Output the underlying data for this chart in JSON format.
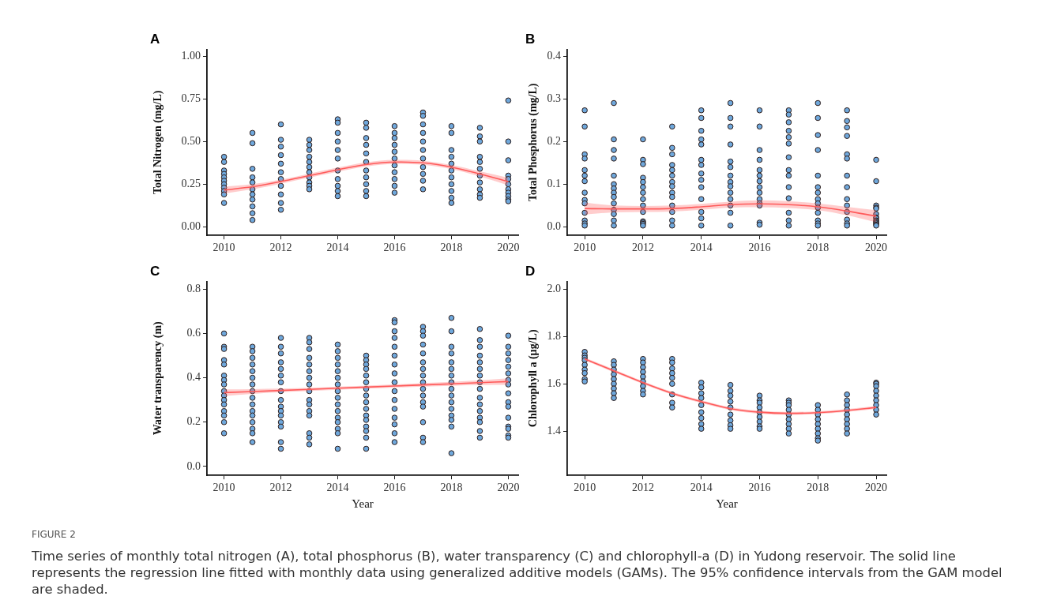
{
  "chart_data": [
    {
      "type": "scatter",
      "title": "A",
      "ylabel": "Total Nitrogen (mg/L)",
      "xlim": [
        2009.4,
        2020.35
      ],
      "xticks": [
        2010,
        2012,
        2014,
        2016,
        2018,
        2020
      ],
      "ylim": [
        -0.05,
        1.04
      ],
      "yticks": [
        {
          "value": 0,
          "label": "0.00"
        },
        {
          "value": 0.25,
          "label": "0.25"
        },
        {
          "value": 0.5,
          "label": "0.50"
        },
        {
          "value": 0.75,
          "label": "0.75"
        },
        {
          "value": 1,
          "label": "1.00"
        }
      ],
      "grid": false,
      "legend": false,
      "series": [
        {
          "type": "scatter",
          "color": "#6fa8dc",
          "marker": "circle",
          "x": [
            2010,
            2010,
            2010,
            2010,
            2010,
            2010,
            2010,
            2010,
            2010,
            2010,
            2010,
            2011,
            2011,
            2011,
            2011,
            2011,
            2011,
            2011,
            2011,
            2011,
            2011,
            2011,
            2012,
            2012,
            2012,
            2012,
            2012,
            2012,
            2012,
            2012,
            2012,
            2012,
            2012,
            2013,
            2013,
            2013,
            2013,
            2013,
            2013,
            2013,
            2013,
            2013,
            2013,
            2013,
            2014,
            2014,
            2014,
            2014,
            2014,
            2014,
            2014,
            2014,
            2014,
            2014,
            2014,
            2015,
            2015,
            2015,
            2015,
            2015,
            2015,
            2015,
            2015,
            2015,
            2015,
            2015,
            2016,
            2016,
            2016,
            2016,
            2016,
            2016,
            2016,
            2016,
            2016,
            2016,
            2016,
            2017,
            2017,
            2017,
            2017,
            2017,
            2017,
            2017,
            2017,
            2017,
            2017,
            2017,
            2018,
            2018,
            2018,
            2018,
            2018,
            2018,
            2018,
            2018,
            2018,
            2018,
            2018,
            2019,
            2019,
            2019,
            2019,
            2019,
            2019,
            2019,
            2019,
            2019,
            2019,
            2019,
            2020,
            2020,
            2020,
            2020,
            2020,
            2020,
            2020,
            2020,
            2020,
            2020,
            2020
          ],
          "values": [
            0.41,
            0.38,
            0.33,
            0.31,
            0.29,
            0.27,
            0.25,
            0.23,
            0.21,
            0.19,
            0.14,
            0.55,
            0.49,
            0.34,
            0.29,
            0.26,
            0.22,
            0.19,
            0.16,
            0.12,
            0.08,
            0.04,
            0.6,
            0.51,
            0.47,
            0.42,
            0.37,
            0.32,
            0.28,
            0.24,
            0.19,
            0.14,
            0.1,
            0.51,
            0.48,
            0.45,
            0.41,
            0.38,
            0.35,
            0.32,
            0.29,
            0.26,
            0.24,
            0.22,
            0.63,
            0.61,
            0.55,
            0.5,
            0.45,
            0.4,
            0.33,
            0.28,
            0.24,
            0.21,
            0.18,
            0.61,
            0.58,
            0.52,
            0.48,
            0.43,
            0.38,
            0.33,
            0.29,
            0.25,
            0.21,
            0.18,
            0.59,
            0.55,
            0.52,
            0.48,
            0.44,
            0.4,
            0.36,
            0.32,
            0.28,
            0.24,
            0.2,
            0.67,
            0.65,
            0.6,
            0.55,
            0.5,
            0.45,
            0.4,
            0.35,
            0.31,
            0.27,
            0.22,
            0.59,
            0.55,
            0.45,
            0.41,
            0.37,
            0.33,
            0.29,
            0.25,
            0.21,
            0.17,
            0.14,
            0.58,
            0.53,
            0.5,
            0.41,
            0.38,
            0.34,
            0.3,
            0.26,
            0.22,
            0.19,
            0.17,
            0.74,
            0.5,
            0.39,
            0.3,
            0.28,
            0.25,
            0.22,
            0.2,
            0.18,
            0.16,
            0.15
          ]
        },
        {
          "type": "line",
          "color": "#ff5a5a",
          "marker": "none",
          "x": [
            2010,
            2011,
            2012,
            2013,
            2014,
            2015,
            2016,
            2017,
            2018,
            2019,
            2020
          ],
          "values": [
            0.215,
            0.235,
            0.265,
            0.3,
            0.335,
            0.365,
            0.38,
            0.375,
            0.35,
            0.31,
            0.265
          ],
          "lower": [
            0.195,
            0.22,
            0.253,
            0.288,
            0.323,
            0.353,
            0.368,
            0.363,
            0.338,
            0.295,
            0.243
          ],
          "upper": [
            0.235,
            0.25,
            0.277,
            0.312,
            0.347,
            0.377,
            0.392,
            0.387,
            0.362,
            0.325,
            0.287
          ]
        }
      ]
    },
    {
      "type": "scatter",
      "title": "B",
      "ylabel": "Total Phosphorus (mg/L)",
      "xlim": [
        2009.4,
        2020.35
      ],
      "xticks": [
        2010,
        2012,
        2014,
        2016,
        2018,
        2020
      ],
      "ylim": [
        -0.02,
        0.416
      ],
      "yticks": [
        {
          "value": 0,
          "label": "0.0"
        },
        {
          "value": 0.1,
          "label": "0.1"
        },
        {
          "value": 0.2,
          "label": "0.2"
        },
        {
          "value": 0.3,
          "label": "0.3"
        },
        {
          "value": 0.4,
          "label": "0.4"
        }
      ],
      "grid": false,
      "legend": false,
      "series": [
        {
          "type": "scatter",
          "color": "#6fa8dc",
          "marker": "circle",
          "x": [
            2010,
            2010,
            2010,
            2010,
            2010,
            2010,
            2010,
            2010,
            2010,
            2010,
            2010,
            2010,
            2010,
            2010,
            2011,
            2011,
            2011,
            2011,
            2011,
            2011,
            2011,
            2011,
            2011,
            2011,
            2011,
            2011,
            2011,
            2011,
            2012,
            2012,
            2012,
            2012,
            2012,
            2012,
            2012,
            2012,
            2012,
            2012,
            2012,
            2012,
            2012,
            2012,
            2013,
            2013,
            2013,
            2013,
            2013,
            2013,
            2013,
            2013,
            2013,
            2013,
            2013,
            2013,
            2013,
            2013,
            2014,
            2014,
            2014,
            2014,
            2014,
            2014,
            2014,
            2014,
            2014,
            2014,
            2014,
            2014,
            2014,
            2014,
            2015,
            2015,
            2015,
            2015,
            2015,
            2015,
            2015,
            2015,
            2015,
            2015,
            2015,
            2015,
            2015,
            2015,
            2016,
            2016,
            2016,
            2016,
            2016,
            2016,
            2016,
            2016,
            2016,
            2016,
            2016,
            2016,
            2016,
            2016,
            2017,
            2017,
            2017,
            2017,
            2017,
            2017,
            2017,
            2017,
            2017,
            2017,
            2017,
            2017,
            2017,
            2017,
            2018,
            2018,
            2018,
            2018,
            2018,
            2018,
            2018,
            2018,
            2018,
            2018,
            2018,
            2018,
            2018,
            2018,
            2019,
            2019,
            2019,
            2019,
            2019,
            2019,
            2019,
            2019,
            2019,
            2019,
            2019,
            2019,
            2019,
            2019,
            2020,
            2020,
            2020,
            2020,
            2020,
            2020,
            2020,
            2020,
            2020,
            2020,
            2020,
            2020,
            2020,
            2020
          ],
          "values": [
            0.273,
            0.235,
            0.17,
            0.16,
            0.133,
            0.12,
            0.107,
            0.08,
            0.063,
            0.055,
            0.033,
            0.015,
            0.008,
            0.003,
            0.29,
            0.205,
            0.18,
            0.16,
            0.12,
            0.1,
            0.09,
            0.08,
            0.07,
            0.055,
            0.04,
            0.03,
            0.015,
            0.003,
            0.205,
            0.157,
            0.147,
            0.115,
            0.105,
            0.093,
            0.08,
            0.065,
            0.05,
            0.035,
            0.013,
            0.01,
            0.007,
            0.003,
            0.235,
            0.185,
            0.17,
            0.145,
            0.133,
            0.12,
            0.105,
            0.095,
            0.08,
            0.07,
            0.05,
            0.035,
            0.015,
            0.003,
            0.273,
            0.255,
            0.225,
            0.205,
            0.193,
            0.157,
            0.145,
            0.125,
            0.11,
            0.093,
            0.065,
            0.035,
            0.02,
            0.003,
            0.29,
            0.255,
            0.235,
            0.193,
            0.153,
            0.14,
            0.12,
            0.105,
            0.095,
            0.08,
            0.065,
            0.05,
            0.033,
            0.003,
            0.273,
            0.235,
            0.18,
            0.157,
            0.133,
            0.12,
            0.107,
            0.093,
            0.08,
            0.065,
            0.055,
            0.05,
            0.01,
            0.005,
            0.273,
            0.263,
            0.245,
            0.225,
            0.21,
            0.195,
            0.163,
            0.133,
            0.12,
            0.093,
            0.067,
            0.033,
            0.015,
            0.003,
            0.29,
            0.255,
            0.215,
            0.18,
            0.12,
            0.093,
            0.08,
            0.065,
            0.055,
            0.045,
            0.033,
            0.015,
            0.008,
            0.003,
            0.273,
            0.248,
            0.233,
            0.213,
            0.17,
            0.16,
            0.12,
            0.093,
            0.065,
            0.05,
            0.035,
            0.017,
            0.008,
            0.003,
            0.157,
            0.107,
            0.05,
            0.045,
            0.043,
            0.03,
            0.022,
            0.02,
            0.015,
            0.013,
            0.01,
            0.008,
            0.005,
            0.003
          ]
        },
        {
          "type": "line",
          "color": "#ff5a5a",
          "marker": "none",
          "x": [
            2010,
            2011,
            2012,
            2013,
            2014,
            2015,
            2016,
            2017,
            2018,
            2019,
            2020
          ],
          "values": [
            0.043,
            0.042,
            0.042,
            0.043,
            0.047,
            0.052,
            0.054,
            0.052,
            0.047,
            0.037,
            0.025
          ],
          "lower": [
            0.029,
            0.034,
            0.035,
            0.036,
            0.04,
            0.045,
            0.046,
            0.044,
            0.039,
            0.027,
            0.011
          ],
          "upper": [
            0.057,
            0.05,
            0.049,
            0.05,
            0.054,
            0.059,
            0.062,
            0.06,
            0.055,
            0.047,
            0.039
          ]
        }
      ]
    },
    {
      "type": "scatter",
      "title": "C",
      "xlabel": "Year",
      "ylabel": "Water transparency (m)",
      "xlim": [
        2009.4,
        2020.35
      ],
      "xticks": [
        2010,
        2012,
        2014,
        2016,
        2018,
        2020
      ],
      "ylim": [
        -0.04,
        0.835
      ],
      "yticks": [
        {
          "value": 0,
          "label": "0.0"
        },
        {
          "value": 0.2,
          "label": "0.2"
        },
        {
          "value": 0.4,
          "label": "0.4"
        },
        {
          "value": 0.6,
          "label": "0.6"
        },
        {
          "value": 0.8,
          "label": "0.8"
        }
      ],
      "grid": false,
      "legend": false,
      "series": [
        {
          "type": "scatter",
          "color": "#6fa8dc",
          "marker": "circle",
          "x": [
            2010,
            2010,
            2010,
            2010,
            2010,
            2010,
            2010,
            2010,
            2010,
            2010,
            2010,
            2010,
            2010,
            2010,
            2010,
            2010,
            2011,
            2011,
            2011,
            2011,
            2011,
            2011,
            2011,
            2011,
            2011,
            2011,
            2011,
            2011,
            2011,
            2011,
            2011,
            2011,
            2012,
            2012,
            2012,
            2012,
            2012,
            2012,
            2012,
            2012,
            2012,
            2012,
            2012,
            2012,
            2012,
            2012,
            2012,
            2012,
            2013,
            2013,
            2013,
            2013,
            2013,
            2013,
            2013,
            2013,
            2013,
            2013,
            2013,
            2013,
            2013,
            2013,
            2013,
            2013,
            2014,
            2014,
            2014,
            2014,
            2014,
            2014,
            2014,
            2014,
            2014,
            2014,
            2014,
            2014,
            2014,
            2014,
            2014,
            2014,
            2015,
            2015,
            2015,
            2015,
            2015,
            2015,
            2015,
            2015,
            2015,
            2015,
            2015,
            2015,
            2015,
            2015,
            2015,
            2015,
            2016,
            2016,
            2016,
            2016,
            2016,
            2016,
            2016,
            2016,
            2016,
            2016,
            2016,
            2016,
            2016,
            2016,
            2016,
            2016,
            2017,
            2017,
            2017,
            2017,
            2017,
            2017,
            2017,
            2017,
            2017,
            2017,
            2017,
            2017,
            2017,
            2017,
            2017,
            2017,
            2018,
            2018,
            2018,
            2018,
            2018,
            2018,
            2018,
            2018,
            2018,
            2018,
            2018,
            2018,
            2018,
            2018,
            2018,
            2018,
            2019,
            2019,
            2019,
            2019,
            2019,
            2019,
            2019,
            2019,
            2019,
            2019,
            2019,
            2019,
            2019,
            2019,
            2019,
            2019,
            2020,
            2020,
            2020,
            2020,
            2020,
            2020,
            2020,
            2020,
            2020,
            2020,
            2020,
            2020,
            2020,
            2020,
            2020,
            2020
          ],
          "values": [
            0.6,
            0.54,
            0.53,
            0.48,
            0.46,
            0.41,
            0.39,
            0.37,
            0.34,
            0.32,
            0.3,
            0.28,
            0.25,
            0.23,
            0.2,
            0.15,
            0.54,
            0.52,
            0.49,
            0.46,
            0.43,
            0.4,
            0.37,
            0.34,
            0.31,
            0.28,
            0.25,
            0.23,
            0.2,
            0.17,
            0.15,
            0.11,
            0.58,
            0.54,
            0.51,
            0.47,
            0.44,
            0.41,
            0.38,
            0.34,
            0.3,
            0.27,
            0.25,
            0.23,
            0.2,
            0.18,
            0.11,
            0.08,
            0.58,
            0.56,
            0.53,
            0.49,
            0.46,
            0.43,
            0.4,
            0.37,
            0.34,
            0.3,
            0.28,
            0.25,
            0.23,
            0.15,
            0.13,
            0.1,
            0.55,
            0.52,
            0.49,
            0.46,
            0.43,
            0.4,
            0.37,
            0.34,
            0.31,
            0.28,
            0.25,
            0.22,
            0.2,
            0.17,
            0.15,
            0.08,
            0.5,
            0.48,
            0.46,
            0.44,
            0.41,
            0.38,
            0.35,
            0.32,
            0.29,
            0.26,
            0.23,
            0.21,
            0.18,
            0.16,
            0.13,
            0.08,
            0.66,
            0.65,
            0.61,
            0.58,
            0.54,
            0.5,
            0.46,
            0.42,
            0.38,
            0.34,
            0.3,
            0.26,
            0.22,
            0.19,
            0.15,
            0.11,
            0.63,
            0.61,
            0.59,
            0.55,
            0.51,
            0.47,
            0.44,
            0.41,
            0.38,
            0.35,
            0.32,
            0.29,
            0.27,
            0.2,
            0.13,
            0.11,
            0.67,
            0.61,
            0.54,
            0.51,
            0.47,
            0.44,
            0.41,
            0.38,
            0.35,
            0.32,
            0.29,
            0.26,
            0.23,
            0.21,
            0.18,
            0.06,
            0.62,
            0.57,
            0.54,
            0.5,
            0.47,
            0.44,
            0.41,
            0.38,
            0.35,
            0.31,
            0.28,
            0.25,
            0.22,
            0.2,
            0.16,
            0.13,
            0.59,
            0.54,
            0.51,
            0.48,
            0.45,
            0.42,
            0.39,
            0.37,
            0.33,
            0.29,
            0.27,
            0.22,
            0.18,
            0.17,
            0.14,
            0.13
          ]
        },
        {
          "type": "line",
          "color": "#ff5a5a",
          "marker": "none",
          "x": [
            2010,
            2011,
            2012,
            2013,
            2014,
            2015,
            2016,
            2017,
            2018,
            2019,
            2020
          ],
          "values": [
            0.333,
            0.338,
            0.343,
            0.348,
            0.353,
            0.358,
            0.363,
            0.368,
            0.373,
            0.378,
            0.383
          ],
          "lower": [
            0.318,
            0.327,
            0.335,
            0.341,
            0.346,
            0.351,
            0.356,
            0.36,
            0.364,
            0.367,
            0.368
          ],
          "upper": [
            0.348,
            0.349,
            0.351,
            0.355,
            0.36,
            0.365,
            0.37,
            0.376,
            0.382,
            0.389,
            0.398
          ]
        }
      ]
    },
    {
      "type": "scatter",
      "title": "D",
      "xlabel": "Year",
      "ylabel": "Chlorophyll a (µg/L)",
      "xlim": [
        2009.4,
        2020.35
      ],
      "xticks": [
        2010,
        2012,
        2014,
        2016,
        2018,
        2020
      ],
      "ylim": [
        1.213,
        2.033
      ],
      "yticks": [
        {
          "value": 1.4,
          "label": "1.4"
        },
        {
          "value": 1.6,
          "label": "1.6"
        },
        {
          "value": 1.8,
          "label": "1.8"
        },
        {
          "value": 2,
          "label": "2.0"
        }
      ],
      "grid": false,
      "legend": false,
      "annotations": [
        "FIGURE 2",
        "Time series of monthly total nitrogen (A), total phosphorus (B), water transparency (C) and chlorophyll-a (D) in Yudong reservoir. The solid line represents the regression line fitted with monthly data using generalized additive models (GAMs). The 95% confidence intervals from the GAM model are shaded."
      ],
      "series": [
        {
          "type": "scatter",
          "color": "#6fa8dc",
          "marker": "circle",
          "x": [
            2010,
            2010,
            2010,
            2010,
            2010,
            2010,
            2010,
            2010,
            2010,
            2011,
            2011,
            2011,
            2011,
            2011,
            2011,
            2011,
            2011,
            2011,
            2012,
            2012,
            2012,
            2012,
            2012,
            2012,
            2012,
            2012,
            2012,
            2013,
            2013,
            2013,
            2013,
            2013,
            2013,
            2013,
            2013,
            2013,
            2014,
            2014,
            2014,
            2014,
            2014,
            2014,
            2014,
            2014,
            2014,
            2015,
            2015,
            2015,
            2015,
            2015,
            2015,
            2015,
            2015,
            2015,
            2016,
            2016,
            2016,
            2016,
            2016,
            2016,
            2016,
            2016,
            2016,
            2017,
            2017,
            2017,
            2017,
            2017,
            2017,
            2017,
            2017,
            2017,
            2018,
            2018,
            2018,
            2018,
            2018,
            2018,
            2018,
            2018,
            2018,
            2019,
            2019,
            2019,
            2019,
            2019,
            2019,
            2019,
            2019,
            2019,
            2020,
            2020,
            2020,
            2020,
            2020,
            2020,
            2020,
            2020,
            2020
          ],
          "values": [
            1.735,
            1.72,
            1.71,
            1.7,
            1.68,
            1.66,
            1.645,
            1.62,
            1.61,
            1.695,
            1.68,
            1.66,
            1.64,
            1.62,
            1.6,
            1.58,
            1.56,
            1.54,
            1.705,
            1.69,
            1.67,
            1.65,
            1.63,
            1.61,
            1.59,
            1.57,
            1.555,
            1.705,
            1.69,
            1.665,
            1.645,
            1.625,
            1.6,
            1.555,
            1.52,
            1.5,
            1.605,
            1.585,
            1.56,
            1.54,
            1.51,
            1.48,
            1.455,
            1.43,
            1.41,
            1.595,
            1.57,
            1.55,
            1.525,
            1.5,
            1.47,
            1.445,
            1.425,
            1.41,
            1.55,
            1.53,
            1.52,
            1.5,
            1.48,
            1.46,
            1.44,
            1.42,
            1.41,
            1.53,
            1.52,
            1.51,
            1.49,
            1.47,
            1.45,
            1.43,
            1.41,
            1.39,
            1.51,
            1.49,
            1.47,
            1.45,
            1.43,
            1.41,
            1.39,
            1.37,
            1.36,
            1.555,
            1.53,
            1.51,
            1.49,
            1.47,
            1.45,
            1.43,
            1.41,
            1.39,
            1.605,
            1.6,
            1.59,
            1.57,
            1.55,
            1.53,
            1.51,
            1.49,
            1.47
          ]
        },
        {
          "type": "line",
          "color": "#ff5a5a",
          "marker": "none",
          "x": [
            2010,
            2011,
            2012,
            2013,
            2014,
            2015,
            2016,
            2017,
            2018,
            2019,
            2020
          ],
          "values": [
            1.705,
            1.655,
            1.605,
            1.56,
            1.525,
            1.495,
            1.48,
            1.475,
            1.478,
            1.487,
            1.5
          ],
          "lower": [
            1.699,
            1.649,
            1.599,
            1.554,
            1.519,
            1.489,
            1.474,
            1.469,
            1.472,
            1.481,
            1.494
          ],
          "upper": [
            1.711,
            1.661,
            1.611,
            1.566,
            1.531,
            1.501,
            1.486,
            1.481,
            1.484,
            1.493,
            1.506
          ]
        }
      ]
    }
  ]
}
